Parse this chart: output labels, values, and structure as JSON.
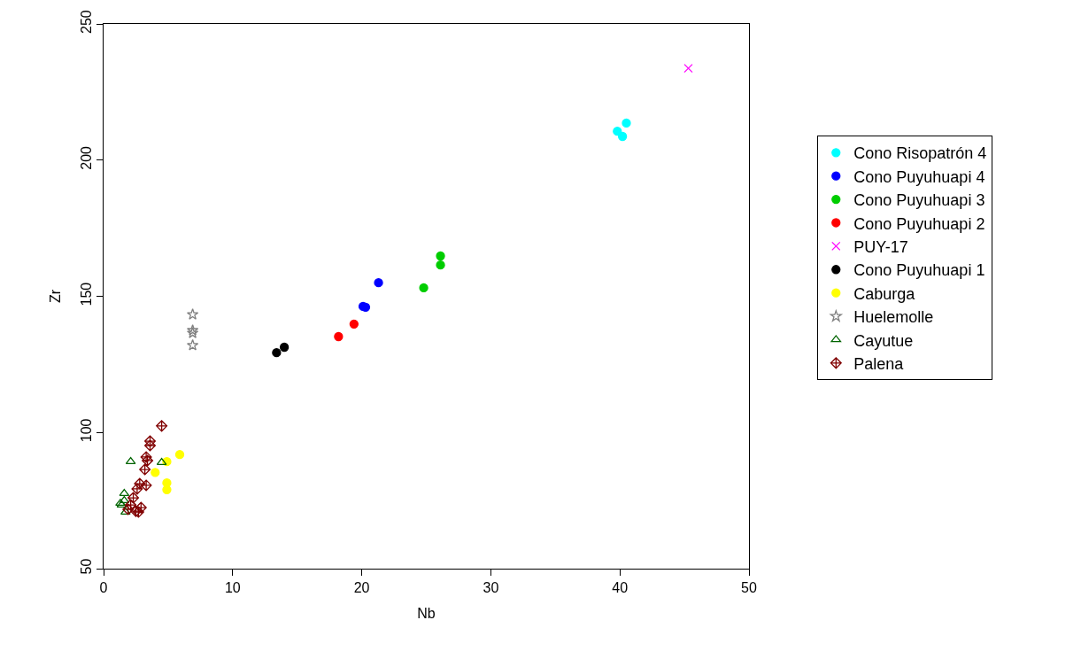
{
  "chart_data": {
    "type": "scatter",
    "xlabel": "Nb",
    "ylabel": "Zr",
    "xlim": [
      0,
      50
    ],
    "ylim": [
      50,
      250
    ],
    "xticks": [
      0,
      10,
      20,
      30,
      40,
      50
    ],
    "yticks": [
      50,
      100,
      150,
      200,
      250
    ],
    "legend": "right",
    "series": [
      {
        "name": "Cono Risopatrón 4",
        "color": "#00ffff",
        "marker": "circle",
        "x": [
          39.8,
          40.2,
          40.5
        ],
        "values": [
          210.6,
          208.7,
          213.6
        ]
      },
      {
        "name": "Cono Puyuhuapi 4",
        "color": "#0000ff",
        "marker": "circle",
        "x": [
          20.1,
          20.3,
          21.3
        ],
        "values": [
          146.3,
          146,
          155
        ]
      },
      {
        "name": "Cono Puyuhuapi 3",
        "color": "#00cd00",
        "marker": "circle",
        "x": [
          24.8,
          26.1,
          26.1
        ],
        "values": [
          153.1,
          164.8,
          161.5
        ]
      },
      {
        "name": "Cono Puyuhuapi 2",
        "color": "#ff0000",
        "marker": "circle",
        "x": [
          18.2,
          19.4
        ],
        "values": [
          135.2,
          139.8
        ]
      },
      {
        "name": "PUY-17",
        "color": "#ff00ff",
        "marker": "cross",
        "x": [
          45.3
        ],
        "values": [
          233.7
        ]
      },
      {
        "name": "Cono Puyuhuapi 1",
        "color": "#000000",
        "marker": "circle",
        "x": [
          13.4,
          14.0
        ],
        "values": [
          129.3,
          131.3
        ]
      },
      {
        "name": "Caburga",
        "color": "#ffff00",
        "marker": "circle",
        "x": [
          5.9,
          4.9,
          4.0,
          4.9,
          4.9
        ],
        "values": [
          91.9,
          89.3,
          85.3,
          81.5,
          79
        ]
      },
      {
        "name": "Huelemolle",
        "color": "#808080",
        "marker": "star",
        "x": [
          6.9,
          6.9,
          6.9,
          6.9
        ],
        "values": [
          143.3,
          136.5,
          137.5,
          132
        ]
      },
      {
        "name": "Cayutue",
        "color": "#006400",
        "marker": "triangle",
        "x": [
          2.1,
          4.5,
          1.6,
          1.6,
          1.4,
          1.7,
          1.3
        ],
        "values": [
          89.3,
          89,
          77.6,
          75,
          73.4,
          70.8,
          74
        ]
      },
      {
        "name": "Palena",
        "color": "#800000",
        "marker": "diamond",
        "x": [
          4.5,
          3.6,
          3.6,
          3.3,
          3.4,
          3.2,
          2.8,
          3.3,
          2.6,
          2.3,
          2.1,
          1.9,
          2.5,
          2.7,
          2.9
        ],
        "values": [
          102.4,
          96.8,
          95.2,
          91,
          89.7,
          86.4,
          81.2,
          80.6,
          79.3,
          76,
          73.4,
          71.8,
          71.1,
          70.8,
          72.4
        ]
      }
    ]
  }
}
